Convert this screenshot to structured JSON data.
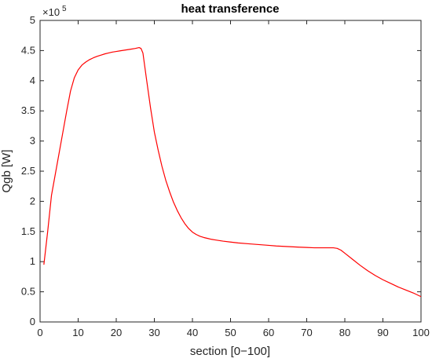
{
  "chart_data": {
    "type": "line",
    "title": "heat transference",
    "xlabel": "section [0−100]",
    "ylabel": "Qgb [W]",
    "xlim": [
      0,
      100
    ],
    "ylim": [
      0,
      500000
    ],
    "x_ticks": [
      0,
      10,
      20,
      30,
      40,
      50,
      60,
      70,
      80,
      90,
      100
    ],
    "x_tick_labels": [
      "0",
      "10",
      "20",
      "30",
      "40",
      "50",
      "60",
      "70",
      "80",
      "90",
      "100"
    ],
    "y_ticks": [
      0,
      50000,
      100000,
      150000,
      200000,
      250000,
      300000,
      350000,
      400000,
      450000,
      500000
    ],
    "y_tick_labels": [
      "0",
      "0.5",
      "1",
      "1.5",
      "2",
      "2.5",
      "3",
      "3.5",
      "4",
      "4.5",
      "5"
    ],
    "y_exponent_base": "×10",
    "y_exponent_power": "5",
    "grid": false,
    "series": [
      {
        "color": "#ff0000",
        "x": [
          1,
          2,
          3,
          4,
          5,
          6,
          7,
          8,
          9,
          10,
          11,
          12,
          13,
          14,
          15,
          16,
          17,
          18,
          19,
          20,
          21,
          22,
          23,
          24,
          25,
          26,
          26.5,
          27,
          28,
          29,
          30,
          31,
          32,
          33,
          34,
          35,
          36,
          37,
          38,
          39,
          40,
          41,
          42,
          43,
          44,
          45,
          46,
          48,
          50,
          52,
          55,
          58,
          60,
          62,
          65,
          68,
          70,
          72,
          74,
          76,
          77,
          78,
          79,
          80,
          82,
          84,
          86,
          88,
          90,
          92,
          94,
          96,
          98,
          100
        ],
        "y": [
          95000,
          150000,
          210000,
          245000,
          280000,
          315000,
          350000,
          383000,
          405000,
          418000,
          426000,
          431000,
          435000,
          438000,
          440500,
          442500,
          444500,
          446000,
          447500,
          448500,
          449500,
          450500,
          451500,
          452500,
          453500,
          455000,
          453500,
          446000,
          400000,
          355000,
          315000,
          285000,
          258000,
          235000,
          216000,
          199000,
          185000,
          173000,
          163000,
          155000,
          149000,
          145000,
          142000,
          140000,
          138500,
          137000,
          136000,
          134000,
          132500,
          131000,
          129500,
          128000,
          127000,
          126000,
          125000,
          124000,
          123500,
          123000,
          123000,
          123000,
          123000,
          122000,
          119000,
          114000,
          104000,
          94000,
          85000,
          77000,
          70000,
          64000,
          58000,
          53000,
          48000,
          42000
        ]
      }
    ]
  }
}
